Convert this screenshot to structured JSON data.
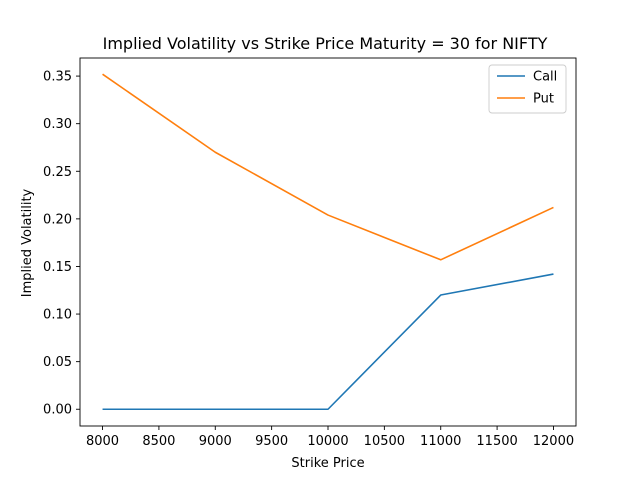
{
  "chart_data": {
    "type": "line",
    "title": "Implied Volatility vs Strike Price Maturity = 30 for NIFTY",
    "xlabel": "Strike Price",
    "ylabel": "Implied Volatility",
    "xlim": [
      7800,
      12200
    ],
    "ylim": [
      -0.0176,
      0.369
    ],
    "x_ticks": [
      8000,
      8500,
      9000,
      9500,
      10000,
      10500,
      11000,
      11500,
      12000
    ],
    "y_ticks": [
      0.0,
      0.05,
      0.1,
      0.15,
      0.2,
      0.25,
      0.3,
      0.35
    ],
    "y_tick_labels": [
      "0.00",
      "0.05",
      "0.10",
      "0.15",
      "0.20",
      "0.25",
      "0.30",
      "0.35"
    ],
    "grid": false,
    "legend_position": "top-right",
    "x": [
      8000,
      9000,
      10000,
      11000,
      12000
    ],
    "series": [
      {
        "name": "Call",
        "color": "#1f77b4",
        "values": [
          0.0,
          0.0,
          0.0,
          0.12,
          0.142
        ]
      },
      {
        "name": "Put",
        "color": "#ff7f0e",
        "values": [
          0.352,
          0.27,
          0.204,
          0.157,
          0.212
        ]
      }
    ]
  }
}
